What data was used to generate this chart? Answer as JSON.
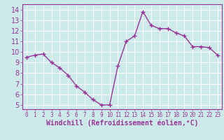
{
  "x": [
    0,
    1,
    2,
    3,
    4,
    5,
    6,
    7,
    8,
    9,
    10,
    11,
    12,
    13,
    14,
    15,
    16,
    17,
    18,
    19,
    20,
    21,
    22,
    23
  ],
  "y": [
    9.5,
    9.7,
    9.8,
    9.0,
    8.5,
    7.8,
    6.8,
    6.2,
    5.5,
    5.0,
    5.0,
    8.7,
    11.0,
    11.5,
    13.8,
    12.5,
    12.2,
    12.2,
    11.8,
    11.5,
    10.5,
    10.5,
    10.4,
    9.7
  ],
  "line_color": "#993399",
  "marker": "+",
  "bg_color": "#cceaea",
  "grid_color": "#b0d8d8",
  "xlabel": "Windchill (Refroidissement éolien,°C)",
  "ylabel_ticks": [
    5,
    6,
    7,
    8,
    9,
    10,
    11,
    12,
    13,
    14
  ],
  "xlim": [
    -0.5,
    23.5
  ],
  "ylim": [
    4.6,
    14.5
  ],
  "xlabel_fontsize": 7,
  "tick_fontsize": 7,
  "line_width": 1.0,
  "marker_size": 4
}
